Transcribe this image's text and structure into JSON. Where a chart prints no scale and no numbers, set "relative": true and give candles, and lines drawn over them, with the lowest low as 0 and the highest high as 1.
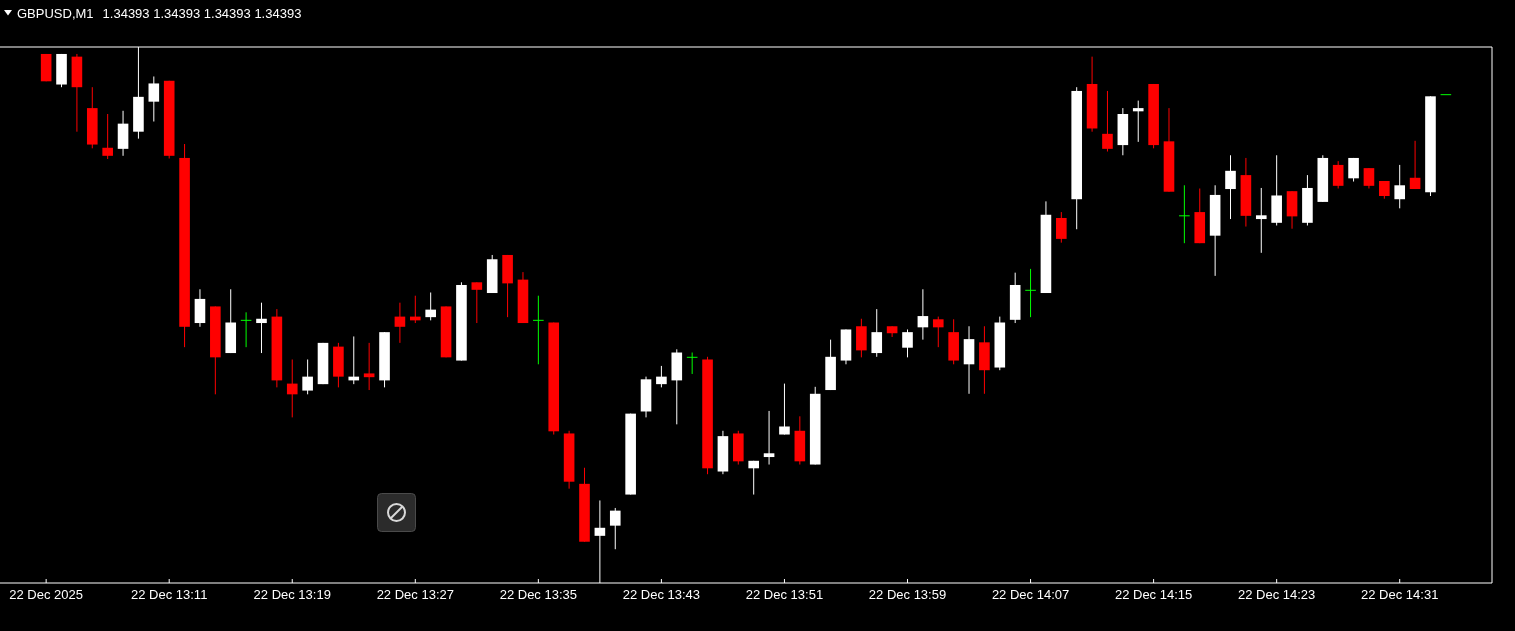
{
  "chart_data": {
    "type": "candlestick",
    "title": "GBPUSD,M1",
    "subtitle": "1.34393 1.34393 1.34393 1.34393",
    "relative": true,
    "x": [
      "2025-12-22T13:03",
      "2025-12-22T13:04",
      "2025-12-22T13:05",
      "2025-12-22T13:06",
      "2025-12-22T13:07",
      "2025-12-22T13:08",
      "2025-12-22T13:09",
      "2025-12-22T13:10",
      "2025-12-22T13:11",
      "2025-12-22T13:12",
      "2025-12-22T13:13",
      "2025-12-22T13:14",
      "2025-12-22T13:15",
      "2025-12-22T13:16",
      "2025-12-22T13:17",
      "2025-12-22T13:18",
      "2025-12-22T13:19",
      "2025-12-22T13:20",
      "2025-12-22T13:21",
      "2025-12-22T13:22",
      "2025-12-22T13:23",
      "2025-12-22T13:24",
      "2025-12-22T13:25",
      "2025-12-22T13:26",
      "2025-12-22T13:27",
      "2025-12-22T13:28",
      "2025-12-22T13:29",
      "2025-12-22T13:30",
      "2025-12-22T13:31",
      "2025-12-22T13:32",
      "2025-12-22T13:33",
      "2025-12-22T13:34",
      "2025-12-22T13:35",
      "2025-12-22T13:36",
      "2025-12-22T13:37",
      "2025-12-22T13:38",
      "2025-12-22T13:39",
      "2025-12-22T13:40",
      "2025-12-22T13:41",
      "2025-12-22T13:42",
      "2025-12-22T13:43",
      "2025-12-22T13:44",
      "2025-12-22T13:45",
      "2025-12-22T13:46",
      "2025-12-22T13:47",
      "2025-12-22T13:48",
      "2025-12-22T13:49",
      "2025-12-22T13:50",
      "2025-12-22T13:51",
      "2025-12-22T13:52",
      "2025-12-22T13:53",
      "2025-12-22T13:54",
      "2025-12-22T13:55",
      "2025-12-22T13:56",
      "2025-12-22T13:57",
      "2025-12-22T13:58",
      "2025-12-22T13:59",
      "2025-12-22T14:00",
      "2025-12-22T14:01",
      "2025-12-22T14:02",
      "2025-12-22T14:03",
      "2025-12-22T14:04",
      "2025-12-22T14:05",
      "2025-12-22T14:06",
      "2025-12-22T14:07",
      "2025-12-22T14:08",
      "2025-12-22T14:09",
      "2025-12-22T14:10",
      "2025-12-22T14:11",
      "2025-12-22T14:12",
      "2025-12-22T14:13",
      "2025-12-22T14:14",
      "2025-12-22T14:15",
      "2025-12-22T14:16",
      "2025-12-22T14:17",
      "2025-12-22T14:18",
      "2025-12-22T14:19",
      "2025-12-22T14:20",
      "2025-12-22T14:21",
      "2025-12-22T14:22",
      "2025-12-22T14:23",
      "2025-12-22T14:24",
      "2025-12-22T14:25",
      "2025-12-22T14:26",
      "2025-12-22T14:27",
      "2025-12-22T14:28",
      "2025-12-22T14:29",
      "2025-12-22T14:30",
      "2025-12-22T14:31",
      "2025-12-22T14:32",
      "2025-12-22T14:33",
      "2025-12-22T14:34"
    ],
    "ohlc": [
      [
        0.987,
        0.987,
        0.936,
        0.936
      ],
      [
        0.93,
        0.987,
        0.925,
        0.987
      ],
      [
        0.982,
        0.987,
        0.842,
        0.925
      ],
      [
        0.886,
        0.925,
        0.811,
        0.818
      ],
      [
        0.812,
        0.875,
        0.791,
        0.797
      ],
      [
        0.81,
        0.881,
        0.797,
        0.857
      ],
      [
        0.842,
        1.0,
        0.829,
        0.907
      ],
      [
        0.898,
        0.945,
        0.861,
        0.932
      ],
      [
        0.937,
        0.937,
        0.792,
        0.797
      ],
      [
        0.793,
        0.819,
        0.44,
        0.478
      ],
      [
        0.485,
        0.548,
        0.478,
        0.53
      ],
      [
        0.516,
        0.516,
        0.352,
        0.421
      ],
      [
        0.429,
        0.548,
        0.429,
        0.486
      ],
      [
        0.491,
        0.505,
        0.44,
        0.491
      ],
      [
        0.485,
        0.523,
        0.429,
        0.493
      ],
      [
        0.497,
        0.511,
        0.365,
        0.378
      ],
      [
        0.372,
        0.417,
        0.309,
        0.352
      ],
      [
        0.359,
        0.417,
        0.352,
        0.385
      ],
      [
        0.371,
        0.448,
        0.371,
        0.448
      ],
      [
        0.441,
        0.448,
        0.365,
        0.385
      ],
      [
        0.378,
        0.46,
        0.371,
        0.385
      ],
      [
        0.391,
        0.448,
        0.36,
        0.384
      ],
      [
        0.378,
        0.468,
        0.365,
        0.468
      ],
      [
        0.497,
        0.523,
        0.448,
        0.478
      ],
      [
        0.497,
        0.536,
        0.485,
        0.49
      ],
      [
        0.496,
        0.542,
        0.49,
        0.51
      ],
      [
        0.516,
        0.516,
        0.421,
        0.421
      ],
      [
        0.415,
        0.561,
        0.415,
        0.556
      ],
      [
        0.561,
        0.561,
        0.485,
        0.547
      ],
      [
        0.541,
        0.612,
        0.541,
        0.604
      ],
      [
        0.612,
        0.612,
        0.496,
        0.559
      ],
      [
        0.566,
        0.58,
        0.485,
        0.485
      ],
      [
        0.491,
        0.536,
        0.408,
        0.491
      ],
      [
        0.486,
        0.486,
        0.277,
        0.283
      ],
      [
        0.279,
        0.284,
        0.176,
        0.189
      ],
      [
        0.185,
        0.215,
        0.077,
        0.077
      ],
      [
        0.088,
        0.154,
        0.0,
        0.103
      ],
      [
        0.107,
        0.14,
        0.063,
        0.135
      ],
      [
        0.165,
        0.316,
        0.165,
        0.316
      ],
      [
        0.32,
        0.385,
        0.309,
        0.38
      ],
      [
        0.371,
        0.405,
        0.365,
        0.385
      ],
      [
        0.378,
        0.436,
        0.296,
        0.43
      ],
      [
        0.422,
        0.43,
        0.39,
        0.422
      ],
      [
        0.417,
        0.422,
        0.203,
        0.214
      ],
      [
        0.208,
        0.284,
        0.203,
        0.274
      ],
      [
        0.279,
        0.284,
        0.221,
        0.227
      ],
      [
        0.214,
        0.228,
        0.165,
        0.228
      ],
      [
        0.235,
        0.321,
        0.221,
        0.242
      ],
      [
        0.277,
        0.372,
        0.277,
        0.292
      ],
      [
        0.284,
        0.311,
        0.221,
        0.227
      ],
      [
        0.221,
        0.366,
        0.221,
        0.353
      ],
      [
        0.36,
        0.454,
        0.36,
        0.422
      ],
      [
        0.415,
        0.473,
        0.408,
        0.473
      ],
      [
        0.479,
        0.493,
        0.421,
        0.434
      ],
      [
        0.429,
        0.511,
        0.422,
        0.468
      ],
      [
        0.479,
        0.479,
        0.459,
        0.466
      ],
      [
        0.439,
        0.473,
        0.421,
        0.468
      ],
      [
        0.477,
        0.548,
        0.454,
        0.498
      ],
      [
        0.492,
        0.497,
        0.44,
        0.477
      ],
      [
        0.468,
        0.492,
        0.408,
        0.415
      ],
      [
        0.408,
        0.479,
        0.353,
        0.455
      ],
      [
        0.449,
        0.479,
        0.353,
        0.397
      ],
      [
        0.402,
        0.497,
        0.397,
        0.486
      ],
      [
        0.491,
        0.579,
        0.485,
        0.556
      ],
      [
        0.547,
        0.586,
        0.496,
        0.547
      ],
      [
        0.541,
        0.712,
        0.541,
        0.687
      ],
      [
        0.681,
        0.692,
        0.635,
        0.642
      ],
      [
        0.716,
        0.925,
        0.66,
        0.918
      ],
      [
        0.931,
        0.982,
        0.842,
        0.848
      ],
      [
        0.838,
        0.918,
        0.805,
        0.81
      ],
      [
        0.817,
        0.886,
        0.798,
        0.875
      ],
      [
        0.88,
        0.9,
        0.823,
        0.886
      ],
      [
        0.931,
        0.931,
        0.811,
        0.817
      ],
      [
        0.824,
        0.886,
        0.73,
        0.73
      ],
      [
        0.686,
        0.742,
        0.634,
        0.686
      ],
      [
        0.692,
        0.736,
        0.634,
        0.634
      ],
      [
        0.648,
        0.742,
        0.573,
        0.724
      ],
      [
        0.735,
        0.798,
        0.679,
        0.769
      ],
      [
        0.761,
        0.793,
        0.665,
        0.685
      ],
      [
        0.679,
        0.737,
        0.616,
        0.686
      ],
      [
        0.672,
        0.798,
        0.667,
        0.723
      ],
      [
        0.731,
        0.731,
        0.661,
        0.684
      ],
      [
        0.672,
        0.761,
        0.667,
        0.737
      ],
      [
        0.711,
        0.798,
        0.711,
        0.793
      ],
      [
        0.78,
        0.787,
        0.736,
        0.741
      ],
      [
        0.755,
        0.793,
        0.749,
        0.793
      ],
      [
        0.774,
        0.774,
        0.736,
        0.741
      ],
      [
        0.75,
        0.75,
        0.717,
        0.722
      ],
      [
        0.716,
        0.78,
        0.699,
        0.742
      ],
      [
        0.756,
        0.825,
        0.735,
        0.735
      ],
      [
        0.729,
        0.908,
        0.722,
        0.908
      ],
      [
        0.912,
        0.912,
        0.912,
        0.912
      ]
    ],
    "colors": [
      "#ff0000",
      "#ffffff",
      "#ff0000",
      "#ff0000",
      "#ff0000",
      "#ffffff",
      "#ffffff",
      "#ffffff",
      "#ff0000",
      "#ff0000",
      "#ffffff",
      "#ff0000",
      "#ffffff",
      "#00ff00",
      "#ffffff",
      "#ff0000",
      "#ff0000",
      "#ffffff",
      "#ffffff",
      "#ff0000",
      "#ffffff",
      "#ff0000",
      "#ffffff",
      "#ff0000",
      "#ff0000",
      "#ffffff",
      "#ff0000",
      "#ffffff",
      "#ff0000",
      "#ffffff",
      "#ff0000",
      "#ff0000",
      "#00ff00",
      "#ff0000",
      "#ff0000",
      "#ff0000",
      "#ffffff",
      "#ffffff",
      "#ffffff",
      "#ffffff",
      "#ffffff",
      "#ffffff",
      "#00ff00",
      "#ff0000",
      "#ffffff",
      "#ff0000",
      "#ffffff",
      "#ffffff",
      "#ffffff",
      "#ff0000",
      "#ffffff",
      "#ffffff",
      "#ffffff",
      "#ff0000",
      "#ffffff",
      "#ff0000",
      "#ffffff",
      "#ffffff",
      "#ff0000",
      "#ff0000",
      "#ffffff",
      "#ff0000",
      "#ffffff",
      "#ffffff",
      "#00ff00",
      "#ffffff",
      "#ff0000",
      "#ffffff",
      "#ff0000",
      "#ff0000",
      "#ffffff",
      "#ffffff",
      "#ff0000",
      "#ff0000",
      "#00ff00",
      "#ff0000",
      "#ffffff",
      "#ffffff",
      "#ff0000",
      "#ffffff",
      "#ffffff",
      "#ff0000",
      "#ffffff",
      "#ffffff",
      "#ff0000",
      "#ffffff",
      "#ff0000",
      "#ff0000",
      "#ffffff",
      "#ff0000",
      "#ffffff",
      "#00ff00"
    ],
    "xlim": [
      "2025-12-22T13:00",
      "2025-12-22T14:37"
    ],
    "xticks": [
      {
        "value": "2025-12-22T13:03",
        "label": "22 Dec 2025"
      },
      {
        "value": "2025-12-22T13:11",
        "label": "22 Dec 13:11"
      },
      {
        "value": "2025-12-22T13:19",
        "label": "22 Dec 13:19"
      },
      {
        "value": "2025-12-22T13:27",
        "label": "22 Dec 13:27"
      },
      {
        "value": "2025-12-22T13:35",
        "label": "22 Dec 13:35"
      },
      {
        "value": "2025-12-22T13:43",
        "label": "22 Dec 13:43"
      },
      {
        "value": "2025-12-22T13:51",
        "label": "22 Dec 13:51"
      },
      {
        "value": "2025-12-22T13:59",
        "label": "22 Dec 13:59"
      },
      {
        "value": "2025-12-22T14:07",
        "label": "22 Dec 14:07"
      },
      {
        "value": "2025-12-22T14:15",
        "label": "22 Dec 14:15"
      },
      {
        "value": "2025-12-22T14:23",
        "label": "22 Dec 14:23"
      },
      {
        "value": "2025-12-22T14:31",
        "label": "22 Dec 14:31"
      }
    ]
  }
}
